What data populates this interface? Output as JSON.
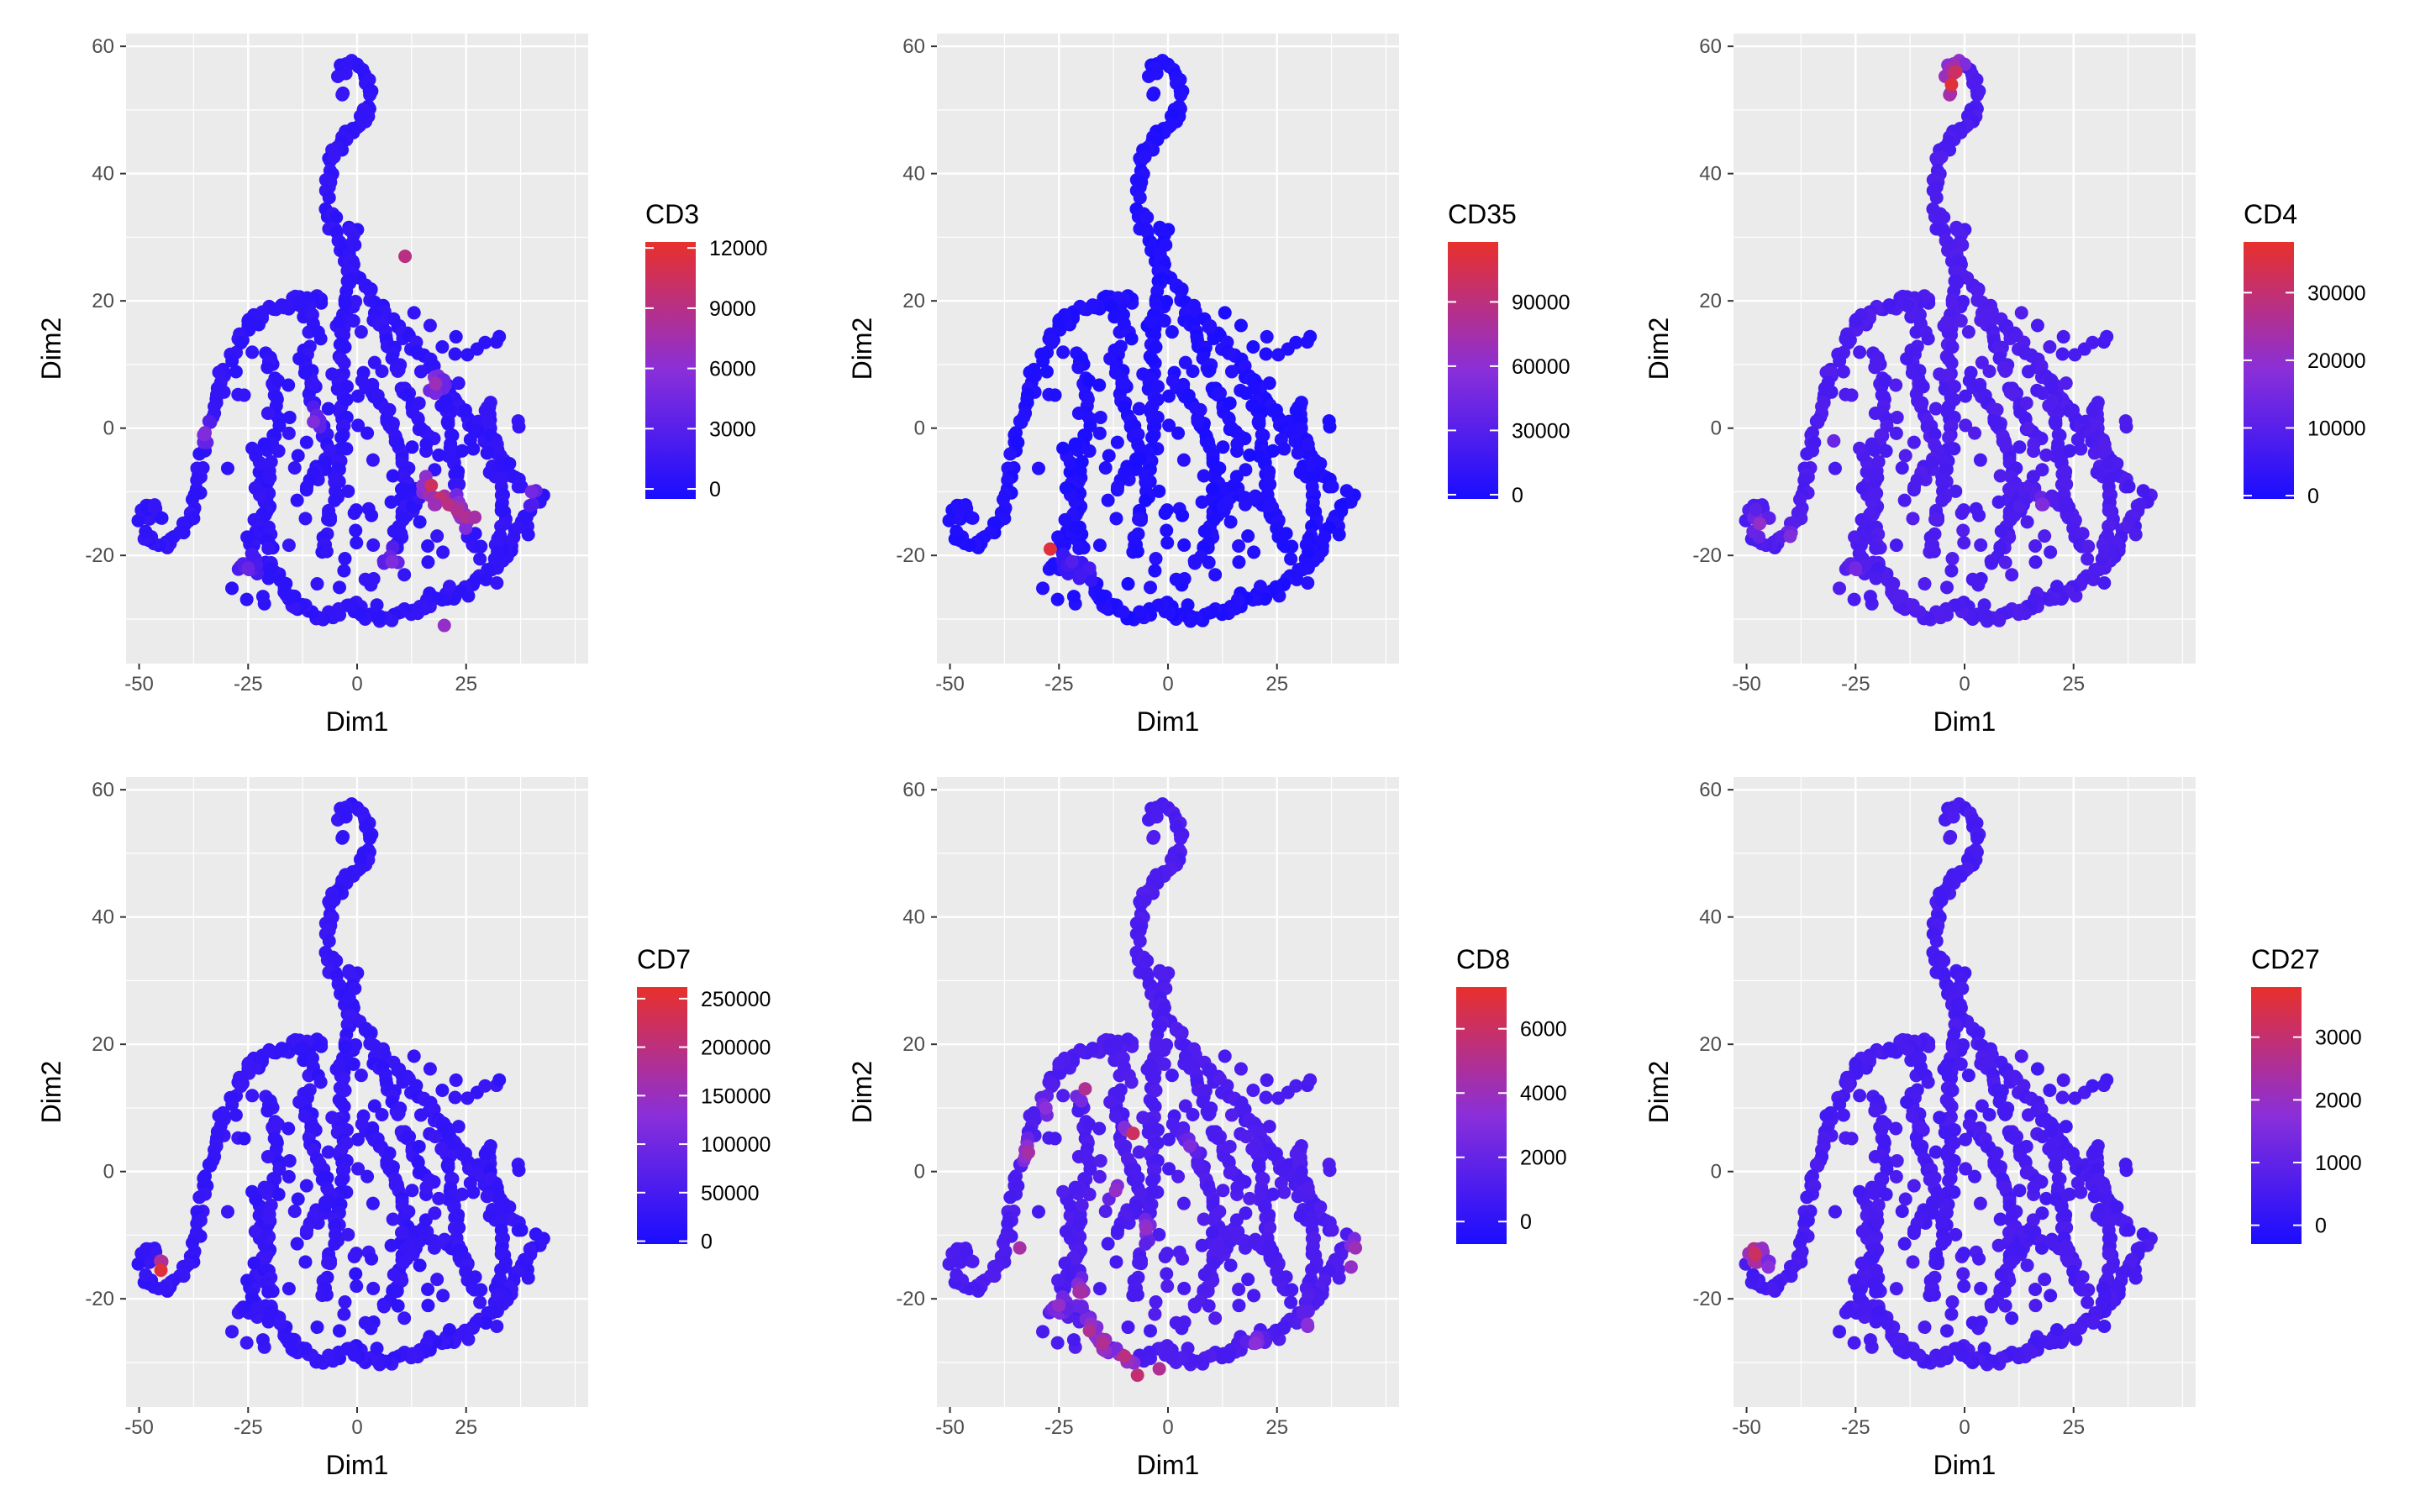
{
  "colors": {
    "low": "#1a0dff",
    "mid": "#8a2fd9",
    "high": "#e8302b",
    "panel_bg": "#ebebeb",
    "grid": "#ffffff"
  },
  "chart_data": [
    {
      "type": "scatter",
      "marker": "CD3",
      "legend_title": "CD3",
      "xlabel": "Dim1",
      "ylabel": "Dim2",
      "xlim": [
        -53,
        53
      ],
      "ylim": [
        -37,
        62
      ],
      "xticks": [
        -50,
        -25,
        0,
        25
      ],
      "yticks": [
        -20,
        0,
        20,
        40,
        60
      ],
      "color_range": [
        -500,
        12300
      ],
      "legend_ticks": [
        0,
        3000,
        6000,
        9000,
        12000
      ],
      "base_level": 0.1,
      "hotspots": [
        {
          "x": 17,
          "y": -9,
          "value": 0.85
        },
        {
          "x": 19,
          "y": -11,
          "value": 0.8
        },
        {
          "x": 21,
          "y": -12,
          "value": 0.75
        },
        {
          "x": 23,
          "y": -13,
          "value": 0.7
        },
        {
          "x": 25,
          "y": -14,
          "value": 0.7
        },
        {
          "x": 27,
          "y": -14,
          "value": 0.65
        },
        {
          "x": 18,
          "y": -12,
          "value": 0.6
        },
        {
          "x": 11,
          "y": 27,
          "value": 0.75
        },
        {
          "x": 18,
          "y": 7,
          "value": 0.6
        },
        {
          "x": 20,
          "y": -31,
          "value": 0.55
        },
        {
          "x": -35,
          "y": -1,
          "value": 0.45
        },
        {
          "x": -10,
          "y": 1,
          "value": 0.45
        },
        {
          "x": 8,
          "y": -21,
          "value": 0.45
        },
        {
          "x": 40,
          "y": -10,
          "value": 0.4
        },
        {
          "x": -25,
          "y": -22,
          "value": 0.35
        }
      ]
    },
    {
      "type": "scatter",
      "marker": "CD35",
      "legend_title": "CD35",
      "xlabel": "Dim1",
      "ylabel": "Dim2",
      "xlim": [
        -53,
        53
      ],
      "ylim": [
        -37,
        62
      ],
      "xticks": [
        -50,
        -25,
        0,
        25
      ],
      "yticks": [
        -20,
        0,
        20,
        40,
        60
      ],
      "color_range": [
        -2000,
        118000
      ],
      "legend_ticks": [
        0,
        30000,
        60000,
        90000
      ],
      "base_level": 0.03,
      "hotspots": [
        {
          "x": -27,
          "y": -19,
          "value": 0.95
        },
        {
          "x": -22,
          "y": -21,
          "value": 0.25
        },
        {
          "x": -18,
          "y": -22,
          "value": 0.2
        },
        {
          "x": -20,
          "y": -23,
          "value": 0.18
        }
      ]
    },
    {
      "type": "scatter",
      "marker": "CD4",
      "legend_title": "CD4",
      "xlabel": "Dim1",
      "ylabel": "Dim2",
      "xlim": [
        -53,
        53
      ],
      "ylim": [
        -37,
        62
      ],
      "xticks": [
        -50,
        -25,
        0,
        25
      ],
      "yticks": [
        -20,
        0,
        20,
        40,
        60
      ],
      "color_range": [
        -500,
        37500
      ],
      "legend_ticks": [
        0,
        10000,
        20000,
        30000
      ],
      "base_level": 0.22,
      "hotspots": [
        {
          "x": -2,
          "y": 56,
          "value": 0.85
        },
        {
          "x": -3,
          "y": 54,
          "value": 0.95
        },
        {
          "x": -47,
          "y": -15,
          "value": 0.55
        },
        {
          "x": -40,
          "y": -17,
          "value": 0.45
        },
        {
          "x": -25,
          "y": -22,
          "value": 0.4
        },
        {
          "x": -30,
          "y": -2,
          "value": 0.35
        },
        {
          "x": 18,
          "y": -12,
          "value": 0.45
        }
      ]
    },
    {
      "type": "scatter",
      "marker": "CD7",
      "legend_title": "CD7",
      "xlabel": "Dim1",
      "ylabel": "Dim2",
      "xlim": [
        -53,
        53
      ],
      "ylim": [
        -37,
        62
      ],
      "xticks": [
        -50,
        -25,
        0,
        25
      ],
      "yticks": [
        -20,
        0,
        20,
        40,
        60
      ],
      "color_range": [
        -3000,
        262000
      ],
      "legend_ticks": [
        0,
        50000,
        100000,
        150000,
        200000,
        250000
      ],
      "base_level": 0.12,
      "hotspots": [
        {
          "x": -45,
          "y": -15.5,
          "value": 0.95
        }
      ]
    },
    {
      "type": "scatter",
      "marker": "CD8",
      "legend_title": "CD8",
      "xlabel": "Dim1",
      "ylabel": "Dim2",
      "xlim": [
        -53,
        53
      ],
      "ylim": [
        -37,
        62
      ],
      "xticks": [
        -50,
        -25,
        0,
        25
      ],
      "yticks": [
        -20,
        0,
        20,
        40,
        60
      ],
      "color_range": [
        -700,
        7300
      ],
      "legend_ticks": [
        0,
        2000,
        4000,
        6000
      ],
      "base_level": 0.22,
      "hotspots": [
        {
          "x": -8,
          "y": 6,
          "value": 0.85
        },
        {
          "x": -19,
          "y": 13,
          "value": 0.7
        },
        {
          "x": -32,
          "y": 3,
          "value": 0.65
        },
        {
          "x": -34,
          "y": -12,
          "value": 0.65
        },
        {
          "x": -20,
          "y": -19,
          "value": 0.65
        },
        {
          "x": -18,
          "y": -25,
          "value": 0.7
        },
        {
          "x": -15,
          "y": -27,
          "value": 0.7
        },
        {
          "x": -10,
          "y": -29,
          "value": 0.75
        },
        {
          "x": -7,
          "y": -32,
          "value": 0.8
        },
        {
          "x": -2,
          "y": -31,
          "value": 0.7
        },
        {
          "x": 43,
          "y": -12,
          "value": 0.6
        },
        {
          "x": 42,
          "y": -15,
          "value": 0.55
        },
        {
          "x": -25,
          "y": -21,
          "value": 0.55
        },
        {
          "x": -12,
          "y": -3,
          "value": 0.55
        },
        {
          "x": -5,
          "y": -9,
          "value": 0.55
        },
        {
          "x": 20,
          "y": -27,
          "value": 0.5
        },
        {
          "x": 32,
          "y": -24,
          "value": 0.5
        },
        {
          "x": -28,
          "y": 10,
          "value": 0.5
        },
        {
          "x": 5,
          "y": 4,
          "value": 0.45
        }
      ]
    },
    {
      "type": "scatter",
      "marker": "CD27",
      "legend_title": "CD27",
      "xlabel": "Dim1",
      "ylabel": "Dim2",
      "xlim": [
        -53,
        53
      ],
      "ylim": [
        -37,
        62
      ],
      "xticks": [
        -50,
        -25,
        0,
        25
      ],
      "yticks": [
        -20,
        0,
        20,
        40,
        60
      ],
      "color_range": [
        -300,
        3800
      ],
      "legend_ticks": [
        0,
        1000,
        2000,
        3000
      ],
      "base_level": 0.2,
      "hotspots": [
        {
          "x": -48,
          "y": -13,
          "value": 0.85
        },
        {
          "x": -45,
          "y": -15,
          "value": 0.5
        }
      ]
    }
  ]
}
